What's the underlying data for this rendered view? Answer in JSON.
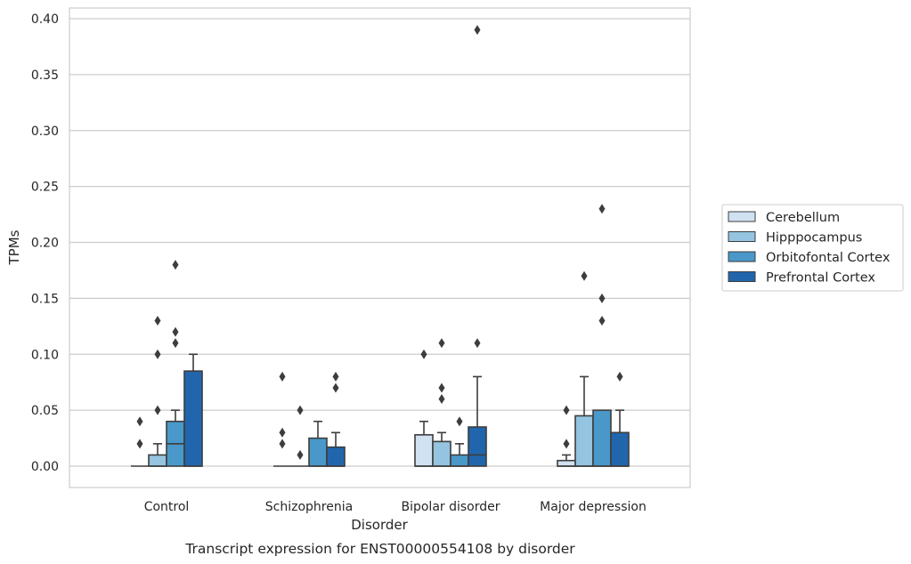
{
  "chart_data": {
    "type": "box",
    "caption": "Transcript expression for ENST00000554108 by disorder",
    "xlabel": "Disorder",
    "ylabel": "TPMs",
    "ylim": [
      -0.019,
      0.41
    ],
    "yticks": [
      0.0,
      0.05,
      0.1,
      0.15,
      0.2,
      0.25,
      0.3,
      0.35,
      0.4
    ],
    "ytick_labels": [
      "0.00",
      "0.05",
      "0.10",
      "0.15",
      "0.20",
      "0.25",
      "0.30",
      "0.35",
      "0.40"
    ],
    "grid": "horizontal",
    "legend_position": "right-center",
    "categories": [
      "Control",
      "Schizophrenia",
      "Bipolar disorder",
      "Major depression"
    ],
    "series": [
      {
        "name": "Cerebellum",
        "color": "#d0e1f2",
        "boxes": [
          {
            "whisker_low": 0,
            "q1": 0,
            "median": 0,
            "q3": 0,
            "whisker_high": 0,
            "outliers": [
              0.02,
              0.04
            ]
          },
          {
            "whisker_low": 0,
            "q1": 0,
            "median": 0,
            "q3": 0,
            "whisker_high": 0,
            "outliers": [
              0.02,
              0.03,
              0.08
            ]
          },
          {
            "whisker_low": 0,
            "q1": 0,
            "median": 0,
            "q3": 0.028,
            "whisker_high": 0.04,
            "outliers": [
              0.1
            ]
          },
          {
            "whisker_low": 0,
            "q1": 0,
            "median": 0,
            "q3": 0.005,
            "whisker_high": 0.01,
            "outliers": [
              0.02,
              0.05
            ]
          }
        ]
      },
      {
        "name": "Hipppocampus",
        "color": "#94c4df",
        "boxes": [
          {
            "whisker_low": 0,
            "q1": 0,
            "median": 0,
            "q3": 0.01,
            "whisker_high": 0.02,
            "outliers": [
              0.05,
              0.1,
              0.13
            ]
          },
          {
            "whisker_low": 0,
            "q1": 0,
            "median": 0,
            "q3": 0,
            "whisker_high": 0,
            "outliers": [
              0.01,
              0.05
            ]
          },
          {
            "whisker_low": 0,
            "q1": 0,
            "median": 0,
            "q3": 0.022,
            "whisker_high": 0.03,
            "outliers": [
              0.06,
              0.07,
              0.11
            ]
          },
          {
            "whisker_low": 0,
            "q1": 0,
            "median": 0,
            "q3": 0.045,
            "whisker_high": 0.08,
            "outliers": [
              0.17
            ]
          }
        ]
      },
      {
        "name": "Orbitofontal Cortex",
        "color": "#4a98c9",
        "boxes": [
          {
            "whisker_low": 0,
            "q1": 0,
            "median": 0.02,
            "q3": 0.04,
            "whisker_high": 0.05,
            "outliers": [
              0.11,
              0.12,
              0.18
            ]
          },
          {
            "whisker_low": 0,
            "q1": 0,
            "median": 0,
            "q3": 0.025,
            "whisker_high": 0.04,
            "outliers": []
          },
          {
            "whisker_low": 0,
            "q1": 0,
            "median": 0,
            "q3": 0.01,
            "whisker_high": 0.02,
            "outliers": [
              0.04
            ]
          },
          {
            "whisker_low": 0,
            "q1": 0,
            "median": 0,
            "q3": 0.05,
            "whisker_high": 0.05,
            "outliers": [
              0.13,
              0.15,
              0.23
            ]
          }
        ]
      },
      {
        "name": "Prefrontal Cortex",
        "color": "#2166ac",
        "boxes": [
          {
            "whisker_low": 0,
            "q1": 0,
            "median": 0,
            "q3": 0.085,
            "whisker_high": 0.1,
            "outliers": []
          },
          {
            "whisker_low": 0,
            "q1": 0,
            "median": 0,
            "q3": 0.017,
            "whisker_high": 0.03,
            "outliers": [
              0.07,
              0.08
            ]
          },
          {
            "whisker_low": 0,
            "q1": 0,
            "median": 0.01,
            "q3": 0.035,
            "whisker_high": 0.08,
            "outliers": [
              0.11,
              0.39
            ]
          },
          {
            "whisker_low": 0,
            "q1": 0,
            "median": 0,
            "q3": 0.03,
            "whisker_high": 0.05,
            "outliers": [
              0.08
            ]
          }
        ]
      }
    ]
  }
}
